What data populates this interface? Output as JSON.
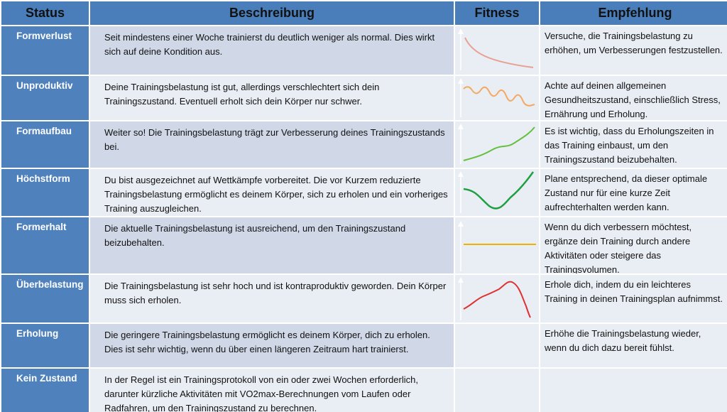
{
  "headers": {
    "status": "Status",
    "description": "Beschreibung",
    "fitness": "Fitness",
    "recommendation": "Empfehlung"
  },
  "rows": [
    {
      "status": "Formverlust",
      "description": "Seit mindestens einer Woche trainierst du deutlich weniger als normal. Dies wirkt sich auf deine Kondition aus.",
      "recommendation": "Versuche, die Trainingsbelastung zu erhöhen, um Verbesserungen festzustellen.",
      "trend_icon": "declining-curve-icon",
      "trend_color": "#e8a090"
    },
    {
      "status": "Unproduktiv",
      "description": "Deine Trainingsbelastung ist gut, allerdings verschlechtert sich dein Trainingszustand. Eventuell erholt sich dein Körper nur schwer.",
      "recommendation": "Achte auf deinen allgemeinen Gesundheitszustand, einschließlich Stress, Ernährung und Erholung.",
      "trend_icon": "wavy-declining-curve-icon",
      "trend_color": "#f5a860"
    },
    {
      "status": "Formaufbau",
      "description": "Weiter so! Die Trainingsbelastung trägt zur Verbesserung deines Trainingszustands bei.",
      "recommendation": "Es ist wichtig, dass du Erholungszeiten in das Training einbaust, um den Trainingszustand beizubehalten.",
      "trend_icon": "rising-curve-icon",
      "trend_color": "#66c040"
    },
    {
      "status": "Höchstform",
      "description": "Du bist ausgezeichnet auf Wettkämpfe vorbereitet. Die vor Kurzem reduzierte Trainingsbelastung ermöglicht es deinem Körper, sich zu erholen und ein vorheriges Training auszugleichen.",
      "recommendation": "Plane entsprechend, da dieser optimale Zustand nur für eine kurze Zeit aufrechterhalten werden kann.",
      "trend_icon": "dip-and-rise-curve-icon",
      "trend_color": "#1fa040"
    },
    {
      "status": "Formerhalt",
      "description": "Die aktuelle Trainingsbelastung ist ausreichend, um den Trainingszustand beizubehalten.",
      "recommendation": "Wenn du dich verbessern möchtest, ergänze dein Training durch andere Aktivitäten oder steigere das Trainingsvolumen.",
      "trend_icon": "flat-line-icon",
      "trend_color": "#f0b400"
    },
    {
      "status": "Überbelastung",
      "description": "Die Trainingsbelastung ist sehr hoch und ist kontraproduktiv geworden. Dein Körper muss sich erholen.",
      "recommendation": "Erhole dich, indem du ein leichteres Training in deinen Trainingsplan aufnimmst.",
      "trend_icon": "peak-and-drop-curve-icon",
      "trend_color": "#e03030"
    },
    {
      "status": "Erholung",
      "description": "Die geringere Trainingsbelastung ermöglicht es deinem Körper, dich zu erholen. Dies ist sehr wichtig, wenn du über einen längeren Zeitraum hart trainierst.",
      "recommendation": "Erhöhe die Trainingsbelastung wieder, wenn du dich dazu bereit fühlst.",
      "trend_icon": "",
      "trend_color": ""
    },
    {
      "status": "Kein Zustand",
      "description": "In der Regel ist ein Trainingsprotokoll von ein oder zwei Wochen erforderlich, darunter kürzliche Aktivitäten mit VO2max-Berechnungen vom Laufen oder Radfahren, um den Trainingszustand zu berechnen.",
      "recommendation": "",
      "trend_icon": "",
      "trend_color": ""
    }
  ]
}
